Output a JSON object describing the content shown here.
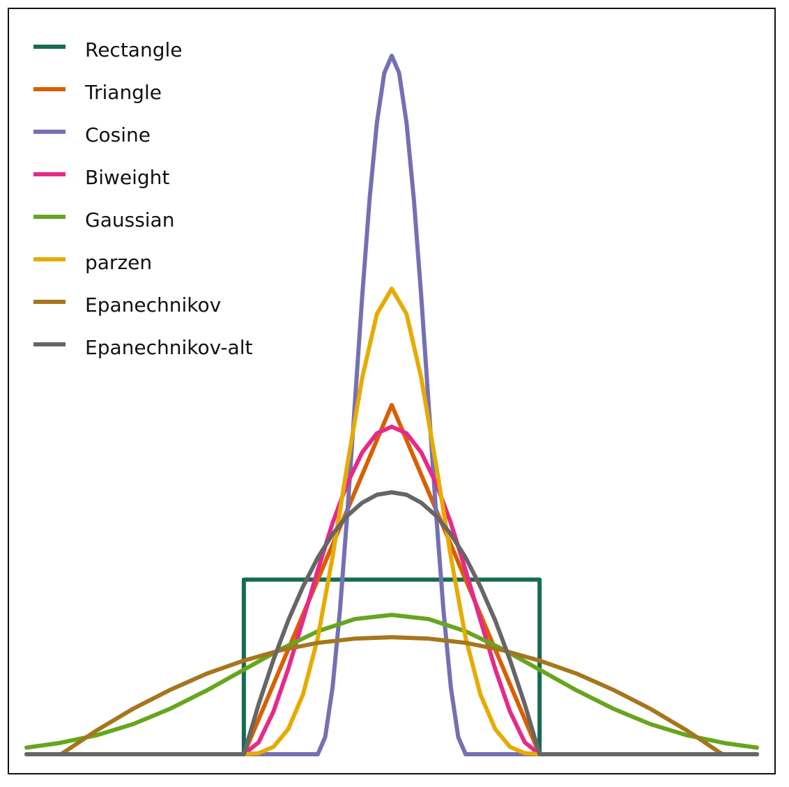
{
  "chart_data": {
    "type": "line",
    "xlim": [
      -2.47,
      2.47
    ],
    "ylim": [
      0,
      2
    ],
    "legend": "upper left",
    "series": [
      {
        "name": "Rectangle",
        "color": "#176b52",
        "x": [
          -2.47,
          -1,
          -1,
          1,
          1,
          2.47
        ],
        "values": [
          0,
          0,
          0.5,
          0.5,
          0,
          0
        ]
      },
      {
        "name": "Triangle",
        "color": "#d95f02",
        "x": [
          -2.47,
          -1,
          0,
          1,
          2.47
        ],
        "values": [
          0,
          0,
          1,
          0,
          0
        ]
      },
      {
        "name": "Cosine",
        "color": "#7570b3",
        "x": [
          -2.47,
          -0.5,
          -0.45,
          -0.4,
          -0.35,
          -0.3,
          -0.25,
          -0.2,
          -0.15,
          -0.1,
          -0.05,
          0,
          0.05,
          0.1,
          0.15,
          0.2,
          0.25,
          0.3,
          0.35,
          0.4,
          0.45,
          0.5,
          2.47
        ],
        "values": [
          0,
          0,
          0.049,
          0.191,
          0.412,
          0.691,
          1,
          1.309,
          1.588,
          1.809,
          1.951,
          2,
          1.951,
          1.809,
          1.588,
          1.309,
          1,
          0.691,
          0.412,
          0.191,
          0.049,
          0,
          0
        ]
      },
      {
        "name": "Biweight",
        "color": "#e7298a",
        "x": [
          -2.47,
          -1,
          -0.9,
          -0.8,
          -0.7,
          -0.6,
          -0.5,
          -0.4,
          -0.3,
          -0.2,
          -0.1,
          0,
          0.1,
          0.2,
          0.3,
          0.4,
          0.5,
          0.6,
          0.7,
          0.8,
          0.9,
          1,
          2.47
        ],
        "values": [
          0,
          0,
          0.034,
          0.122,
          0.244,
          0.384,
          0.527,
          0.662,
          0.776,
          0.864,
          0.919,
          0.938,
          0.919,
          0.864,
          0.776,
          0.662,
          0.527,
          0.384,
          0.244,
          0.122,
          0.034,
          0,
          0
        ]
      },
      {
        "name": "Gaussian",
        "color": "#66a61e",
        "x": [
          -2.47,
          -2.25,
          -2,
          -1.75,
          -1.5,
          -1.25,
          -1,
          -0.75,
          -0.5,
          -0.25,
          0,
          0.25,
          0.5,
          0.75,
          1,
          1.25,
          1.5,
          1.75,
          2,
          2.25,
          2.47
        ],
        "values": [
          0.019,
          0.032,
          0.054,
          0.086,
          0.13,
          0.183,
          0.242,
          0.301,
          0.352,
          0.387,
          0.399,
          0.387,
          0.352,
          0.301,
          0.242,
          0.183,
          0.13,
          0.086,
          0.054,
          0.032,
          0.019
        ]
      },
      {
        "name": "parzen",
        "color": "#e6ab02",
        "x": [
          -2.47,
          -1,
          -0.9,
          -0.8,
          -0.7,
          -0.6,
          -0.5,
          -0.4,
          -0.3,
          -0.2,
          -0.1,
          0,
          0.1,
          0.2,
          0.3,
          0.4,
          0.5,
          0.6,
          0.7,
          0.8,
          0.9,
          1,
          2.47
        ],
        "values": [
          0,
          0,
          0.003,
          0.021,
          0.072,
          0.171,
          0.333,
          0.565,
          0.829,
          1.077,
          1.261,
          1.333,
          1.261,
          1.077,
          0.829,
          0.565,
          0.333,
          0.171,
          0.072,
          0.021,
          0.003,
          0,
          0
        ]
      },
      {
        "name": "Epanechnikov",
        "color": "#a6761d",
        "x": [
          -2.47,
          -2.236,
          -2,
          -1.75,
          -1.5,
          -1.25,
          -1,
          -0.75,
          -0.5,
          -0.25,
          0,
          0.25,
          0.5,
          0.75,
          1,
          1.25,
          1.5,
          1.75,
          2,
          2.236,
          2.47
        ],
        "values": [
          0,
          0,
          0.067,
          0.13,
          0.184,
          0.231,
          0.268,
          0.298,
          0.319,
          0.331,
          0.335,
          0.331,
          0.319,
          0.298,
          0.268,
          0.231,
          0.184,
          0.13,
          0.067,
          0,
          0
        ]
      },
      {
        "name": "Epanechnikov-alt",
        "color": "#666666",
        "x": [
          -2.47,
          -1,
          -0.9,
          -0.8,
          -0.7,
          -0.6,
          -0.5,
          -0.4,
          -0.3,
          -0.2,
          -0.1,
          0,
          0.1,
          0.2,
          0.3,
          0.4,
          0.5,
          0.6,
          0.7,
          0.8,
          0.9,
          1,
          2.47
        ],
        "values": [
          0,
          0,
          0.143,
          0.27,
          0.383,
          0.48,
          0.563,
          0.63,
          0.683,
          0.72,
          0.743,
          0.75,
          0.743,
          0.72,
          0.683,
          0.63,
          0.563,
          0.48,
          0.383,
          0.27,
          0.143,
          0,
          0
        ]
      }
    ]
  }
}
